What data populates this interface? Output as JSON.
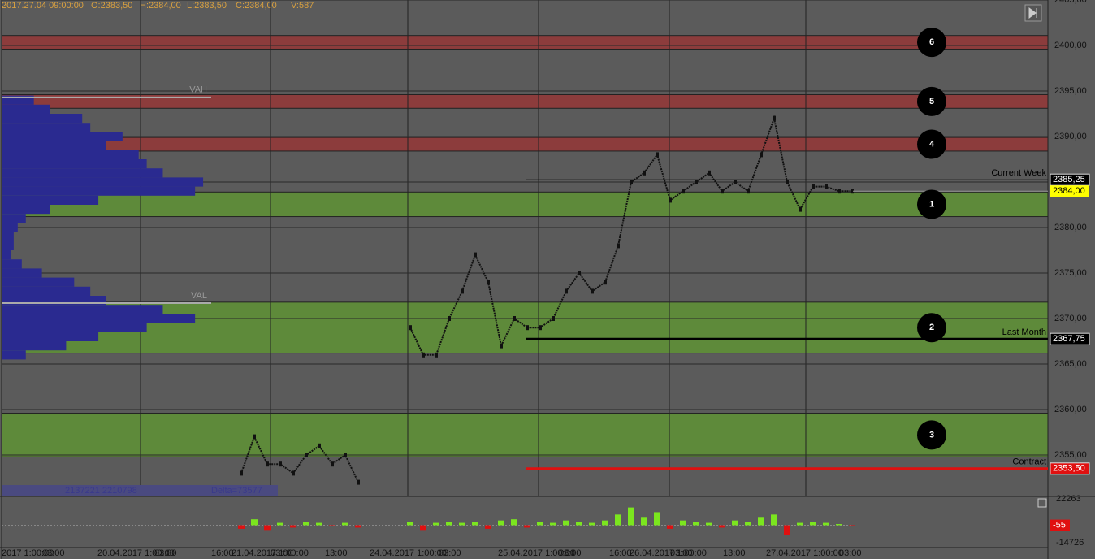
{
  "chart_data": {
    "type": "line",
    "header": {
      "date": "2017.27.04 09:00:00",
      "open": "O:2383,50",
      "high": "H:2384,00",
      "low": "L:2383,50",
      "close": "C:2384,00",
      "volume": "V:587"
    },
    "ylim": [
      2350.5,
      2405
    ],
    "yticks": [
      {
        "value": 2355,
        "label": "2355,00"
      },
      {
        "value": 2360,
        "label": "2360,00"
      },
      {
        "value": 2365,
        "label": "2365,00"
      },
      {
        "value": 2370,
        "label": "2370,00"
      },
      {
        "value": 2375,
        "label": "2375,00"
      },
      {
        "value": 2380,
        "label": "2380,00"
      },
      {
        "value": 2385,
        "label": "2385,00"
      },
      {
        "value": 2390,
        "label": "2390,00"
      },
      {
        "value": 2395,
        "label": "2395,00"
      },
      {
        "value": 2400,
        "label": "2400,00"
      },
      {
        "value": 2405,
        "label": "2405,00"
      }
    ],
    "zones": [
      {
        "label": "6",
        "from": 2399.6,
        "to": 2401.1,
        "color": "#8c3c3c"
      },
      {
        "label": "5",
        "from": 2393.1,
        "to": 2394.6,
        "color": "#8c3c3c"
      },
      {
        "label": "4",
        "from": 2388.4,
        "to": 2389.9,
        "color": "#8c3c3c"
      },
      {
        "label": "1",
        "from": 2381.2,
        "to": 2383.9,
        "color": "#5e8a3a"
      },
      {
        "label": "2",
        "from": 2366.2,
        "to": 2371.8,
        "color": "#5e8a3a"
      },
      {
        "label": "3",
        "from": 2354.8,
        "to": 2359.6,
        "color": "#5e8a3a"
      }
    ],
    "levels": [
      {
        "name": "Current Week",
        "value": 2385.25,
        "label": "2385,25",
        "color": "#000000"
      },
      {
        "name": "Last Month",
        "value": 2367.75,
        "label": "2367,75",
        "color": "#000000"
      },
      {
        "name": "Contract",
        "value": 2353.5,
        "label": "2353,50",
        "color": "#e01010"
      }
    ],
    "last_price": {
      "value": 2384,
      "label": "2384,00",
      "color": "#ffff00"
    },
    "series": [
      {
        "name": "Price",
        "color": "#111111",
        "values": [
          2353,
          2357,
          2354,
          2354,
          2353,
          2355,
          2356,
          2354,
          2355,
          2352,
          null,
          null,
          null,
          2369,
          2366,
          2366,
          2370,
          2373,
          2377,
          2374,
          2367,
          2370,
          2369,
          2369,
          2370,
          2373,
          2375,
          2373,
          2374,
          2378,
          2385,
          2386,
          2388,
          2383,
          2384,
          2385,
          2386,
          2384,
          2385,
          2384,
          2388,
          2392,
          2385,
          2382,
          2384.5,
          2384.5,
          2384,
          2384
        ]
      }
    ],
    "profile": {
      "color": "#2a2a90",
      "prices": [
        2394,
        2393,
        2392,
        2391,
        2390,
        2389,
        2388,
        2387,
        2386,
        2385,
        2384,
        2383,
        2382,
        2381,
        2380,
        2379,
        2378,
        2377,
        2376,
        2375,
        2374,
        2373,
        2372,
        2371,
        2370,
        2369,
        2368,
        2367,
        2366
      ],
      "values": [
        40,
        60,
        100,
        110,
        150,
        130,
        170,
        180,
        200,
        250,
        240,
        120,
        60,
        30,
        20,
        15,
        15,
        12,
        25,
        50,
        90,
        110,
        130,
        200,
        240,
        180,
        120,
        80,
        30
      ],
      "xlim": [
        0,
        260
      ],
      "vah": "VAH",
      "vah_value": 2394.3,
      "val": "VAL",
      "val_value": 2371.7
    },
    "volume_text": "2137221 2210798",
    "delta_text": "Delta=73577",
    "delta": {
      "values": [
        -3000,
        5000,
        -4000,
        2000,
        -2000,
        3000,
        2000,
        -1000,
        2000,
        -2000,
        null,
        null,
        null,
        3000,
        -4000,
        2000,
        3000,
        2000,
        2500,
        -3000,
        4000,
        5000,
        -2000,
        3000,
        2000,
        4000,
        3000,
        2000,
        4000,
        9000,
        15000,
        7000,
        11000,
        -3000,
        4000,
        3000,
        2000,
        -2000,
        4000,
        3000,
        7000,
        9000,
        -8000,
        2000,
        3000,
        2000,
        1000,
        -1000
      ],
      "ylim": [
        -14726,
        22263
      ],
      "yticks": [
        -14726,
        22263
      ],
      "last": -55,
      "up_color": "#7be61e",
      "down_color": "#e01010"
    },
    "xlabels": [
      "2017 1:00:00",
      "03:00",
      "20.04.2017 1:00:00",
      "03:00",
      "16:00",
      "21.04.2017 1:00:00",
      "03:00",
      "13:00",
      "24.04.2017 1:00:00",
      "03:00",
      "25.04.2017 1:00:00",
      "03:00",
      "16:00",
      "26.04.2017 1:00:00",
      "03:00",
      "13:00",
      "27.04.2017 1:00:00",
      "03:00"
    ],
    "grid": true
  }
}
